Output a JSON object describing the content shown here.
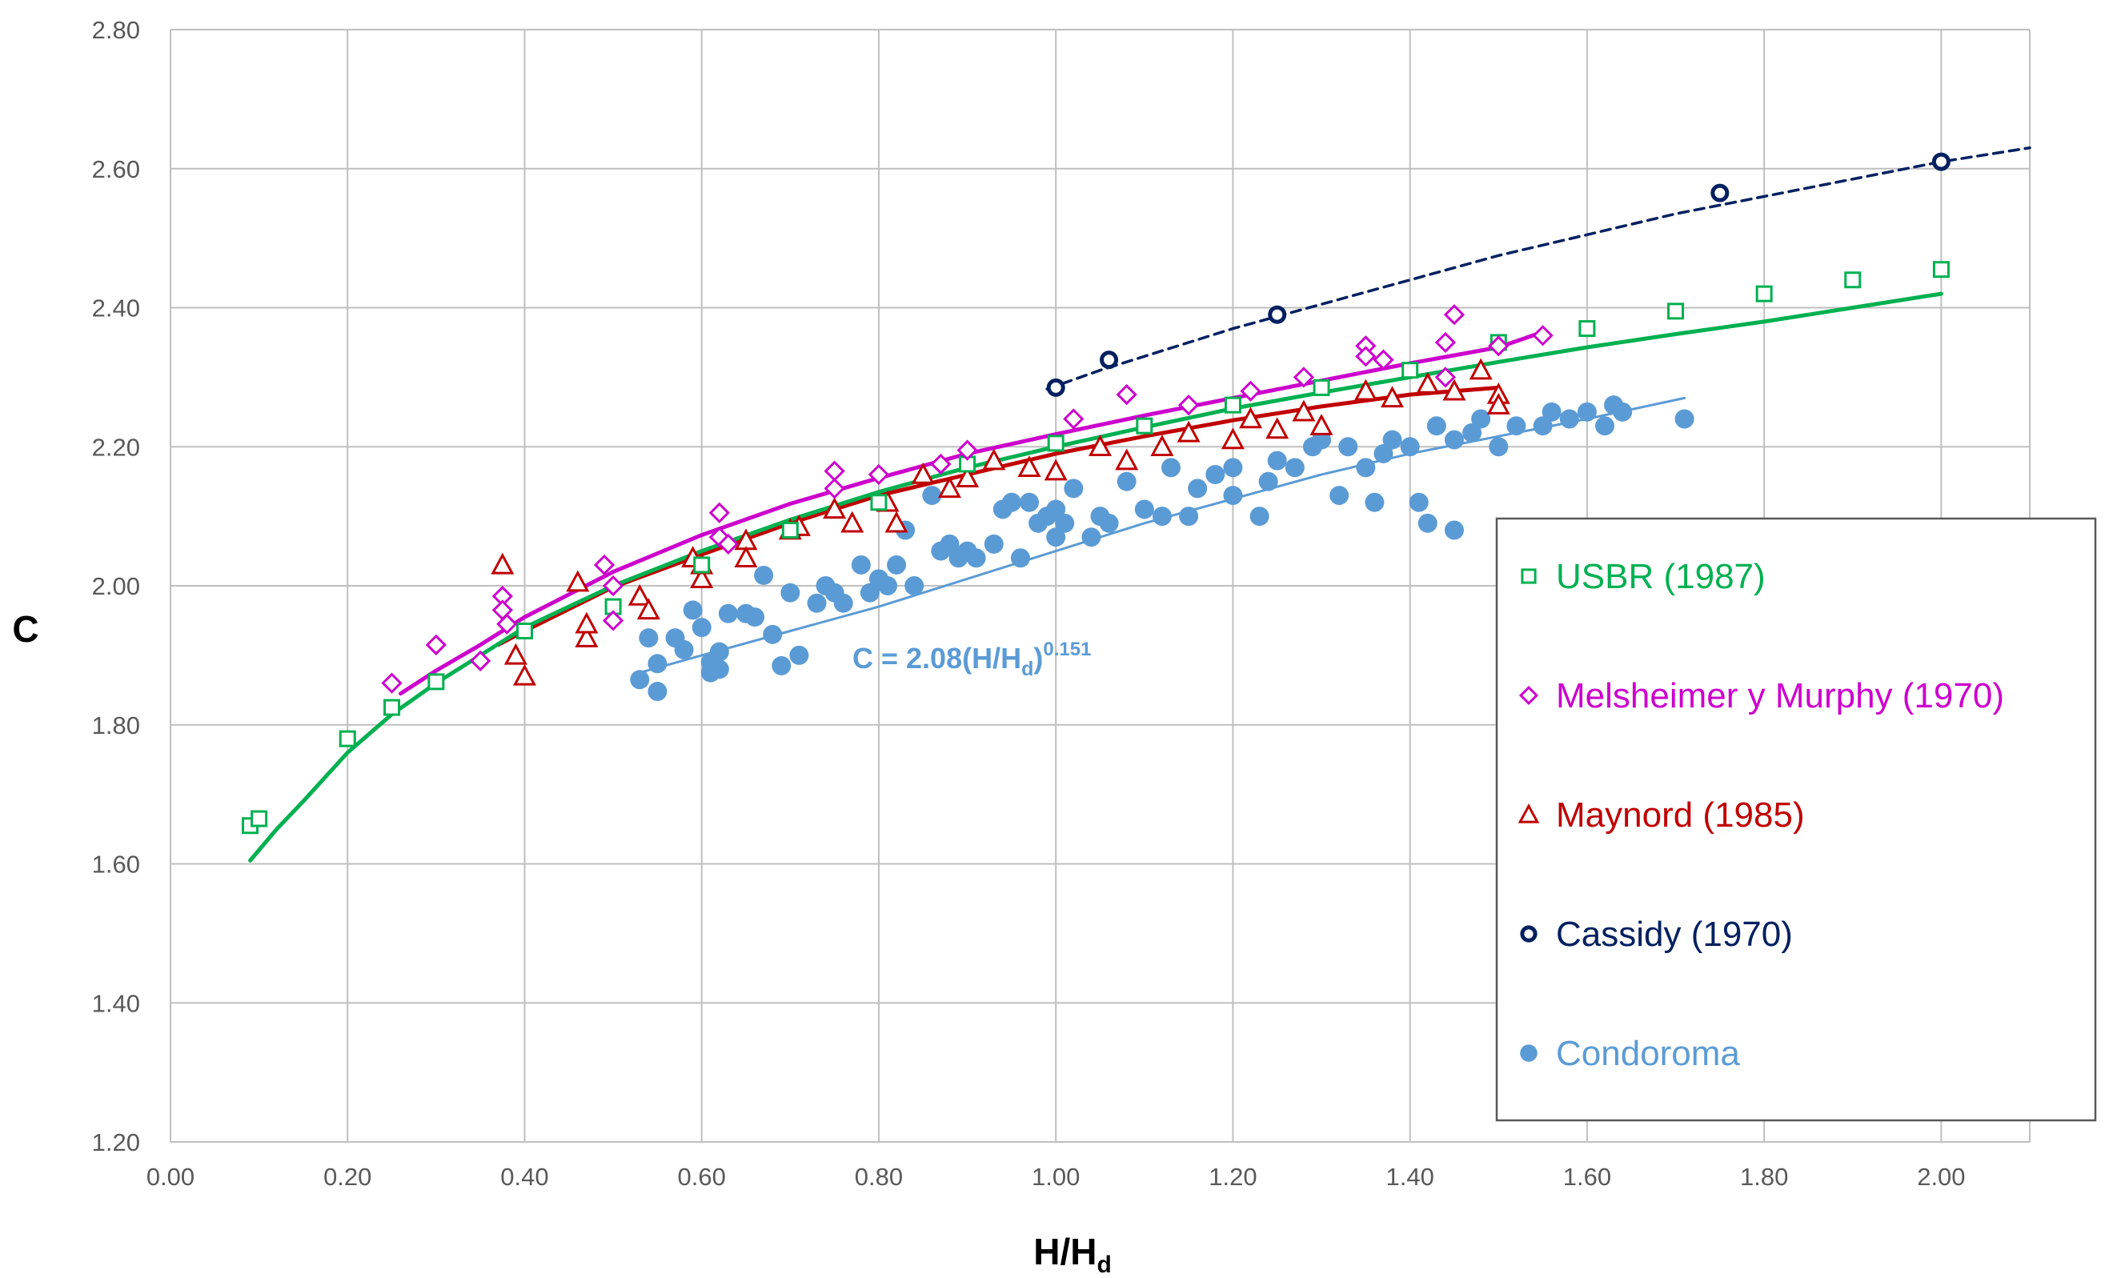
{
  "chart_data": {
    "type": "scatter",
    "title": "",
    "xlabel": "H/H",
    "xlabel_sub": "d",
    "ylabel": "C",
    "xlim": [
      0.0,
      2.1
    ],
    "ylim": [
      1.2,
      2.8
    ],
    "x_ticks": [
      "0.00",
      "0.20",
      "0.40",
      "0.60",
      "0.80",
      "1.00",
      "1.20",
      "1.40",
      "1.60",
      "1.80",
      "2.00"
    ],
    "y_ticks": [
      "1.20",
      "1.40",
      "1.60",
      "1.80",
      "2.00",
      "2.20",
      "2.40",
      "2.60",
      "2.80"
    ],
    "grid": true,
    "legend_position": "right",
    "annotation": {
      "prefix": "C = 2.08(H/H",
      "sub": "d",
      "close": ")",
      "sup": "0.151",
      "x": 0.78,
      "y": 1.885
    },
    "series": [
      {
        "name": "USBR (1987)",
        "color": "#00B050",
        "marker": "square",
        "points": [
          [
            0.09,
            1.655
          ],
          [
            0.1,
            1.665
          ],
          [
            0.2,
            1.78
          ],
          [
            0.25,
            1.825
          ],
          [
            0.3,
            1.862
          ],
          [
            0.4,
            1.935
          ],
          [
            0.5,
            1.97
          ],
          [
            0.6,
            2.03
          ],
          [
            0.7,
            2.08
          ],
          [
            0.8,
            2.12
          ],
          [
            0.9,
            2.175
          ],
          [
            1.0,
            2.205
          ],
          [
            1.1,
            2.23
          ],
          [
            1.2,
            2.26
          ],
          [
            1.3,
            2.285
          ],
          [
            1.4,
            2.31
          ],
          [
            1.5,
            2.35
          ],
          [
            1.6,
            2.37
          ],
          [
            1.7,
            2.395
          ],
          [
            1.8,
            2.42
          ],
          [
            1.9,
            2.44
          ],
          [
            2.0,
            2.455
          ]
        ],
        "fit": {
          "type": "line",
          "x": [
            0.09,
            0.12,
            0.15,
            0.2,
            0.25,
            0.3,
            0.4,
            0.5,
            0.6,
            0.7,
            0.8,
            0.9,
            1.0,
            1.1,
            1.2,
            1.3,
            1.4,
            1.5,
            1.6,
            1.7,
            1.8,
            1.9,
            2.0
          ],
          "y": [
            1.605,
            1.65,
            1.69,
            1.76,
            1.815,
            1.86,
            1.94,
            2.0,
            2.05,
            2.095,
            2.135,
            2.17,
            2.2,
            2.228,
            2.255,
            2.278,
            2.3,
            2.322,
            2.343,
            2.362,
            2.38,
            2.4,
            2.42
          ],
          "width": 5,
          "dash": ""
        }
      },
      {
        "name": "Melsheimer y Murphy (1970)",
        "color": "#CC00CC",
        "marker": "diamond",
        "points": [
          [
            0.25,
            1.86
          ],
          [
            0.3,
            1.915
          ],
          [
            0.35,
            1.892
          ],
          [
            0.375,
            1.985
          ],
          [
            0.375,
            1.965
          ],
          [
            0.38,
            1.945
          ],
          [
            0.49,
            2.03
          ],
          [
            0.5,
            2.0
          ],
          [
            0.5,
            1.95
          ],
          [
            0.62,
            2.105
          ],
          [
            0.62,
            2.07
          ],
          [
            0.63,
            2.06
          ],
          [
            0.75,
            2.165
          ],
          [
            0.75,
            2.14
          ],
          [
            0.8,
            2.16
          ],
          [
            0.87,
            2.175
          ],
          [
            0.9,
            2.195
          ],
          [
            1.02,
            2.24
          ],
          [
            1.08,
            2.275
          ],
          [
            1.15,
            2.26
          ],
          [
            1.22,
            2.28
          ],
          [
            1.28,
            2.3
          ],
          [
            1.35,
            2.345
          ],
          [
            1.35,
            2.33
          ],
          [
            1.37,
            2.325
          ],
          [
            1.44,
            2.35
          ],
          [
            1.45,
            2.39
          ],
          [
            1.44,
            2.3
          ],
          [
            1.5,
            2.345
          ],
          [
            1.55,
            2.36
          ]
        ],
        "fit": {
          "type": "line",
          "x": [
            0.26,
            0.3,
            0.35,
            0.4,
            0.5,
            0.6,
            0.7,
            0.8,
            0.9,
            1.0,
            1.1,
            1.2,
            1.3,
            1.4,
            1.5,
            1.55
          ],
          "y": [
            1.845,
            1.878,
            1.915,
            1.955,
            2.02,
            2.073,
            2.118,
            2.155,
            2.19,
            2.218,
            2.245,
            2.27,
            2.295,
            2.32,
            2.343,
            2.365
          ],
          "width": 5,
          "dash": ""
        }
      },
      {
        "name": "Maynord (1985)",
        "color": "#C00000",
        "marker": "triangle",
        "points": [
          [
            0.375,
            2.03
          ],
          [
            0.39,
            1.9
          ],
          [
            0.4,
            1.87
          ],
          [
            0.46,
            2.005
          ],
          [
            0.47,
            1.925
          ],
          [
            0.47,
            1.945
          ],
          [
            0.53,
            1.985
          ],
          [
            0.54,
            1.965
          ],
          [
            0.59,
            2.04
          ],
          [
            0.6,
            2.01
          ],
          [
            0.6,
            2.03
          ],
          [
            0.65,
            2.065
          ],
          [
            0.65,
            2.04
          ],
          [
            0.7,
            2.08
          ],
          [
            0.71,
            2.085
          ],
          [
            0.75,
            2.11
          ],
          [
            0.77,
            2.09
          ],
          [
            0.81,
            2.12
          ],
          [
            0.82,
            2.09
          ],
          [
            0.85,
            2.16
          ],
          [
            0.88,
            2.14
          ],
          [
            0.9,
            2.155
          ],
          [
            0.93,
            2.18
          ],
          [
            0.97,
            2.17
          ],
          [
            1.0,
            2.165
          ],
          [
            1.05,
            2.2
          ],
          [
            1.08,
            2.18
          ],
          [
            1.12,
            2.2
          ],
          [
            1.15,
            2.22
          ],
          [
            1.2,
            2.21
          ],
          [
            1.22,
            2.24
          ],
          [
            1.25,
            2.225
          ],
          [
            1.28,
            2.25
          ],
          [
            1.3,
            2.23
          ],
          [
            1.35,
            2.28
          ],
          [
            1.38,
            2.27
          ],
          [
            1.42,
            2.29
          ],
          [
            1.45,
            2.28
          ],
          [
            1.48,
            2.31
          ],
          [
            1.5,
            2.275
          ],
          [
            1.5,
            2.26
          ]
        ],
        "fit": {
          "type": "line",
          "x": [
            0.37,
            0.4,
            0.5,
            0.6,
            0.7,
            0.8,
            0.9,
            1.0,
            1.1,
            1.2,
            1.3,
            1.4,
            1.5
          ],
          "y": [
            1.915,
            1.935,
            1.998,
            2.045,
            2.09,
            2.13,
            2.16,
            2.19,
            2.215,
            2.238,
            2.258,
            2.275,
            2.285
          ],
          "width": 5,
          "dash": ""
        }
      },
      {
        "name": "Cassidy (1970)",
        "color": "#002060",
        "marker": "circle-open",
        "points": [
          [
            1.0,
            2.285
          ],
          [
            1.06,
            2.325
          ],
          [
            1.25,
            2.39
          ],
          [
            1.75,
            2.565
          ],
          [
            2.0,
            2.61
          ]
        ],
        "fit": {
          "type": "line",
          "x": [
            0.99,
            1.05,
            1.1,
            1.2,
            1.3,
            1.4,
            1.5,
            1.6,
            1.7,
            1.8,
            1.9,
            2.0,
            2.1
          ],
          "y": [
            2.283,
            2.31,
            2.33,
            2.37,
            2.405,
            2.44,
            2.475,
            2.505,
            2.535,
            2.56,
            2.585,
            2.61,
            2.63
          ],
          "width": 3.5,
          "dash": "12,8"
        }
      },
      {
        "name": "Condoroma",
        "color": "#5B9BD5",
        "marker": "circle-filled",
        "points": [
          [
            0.53,
            1.865
          ],
          [
            0.54,
            1.925
          ],
          [
            0.55,
            1.848
          ],
          [
            0.55,
            1.888
          ],
          [
            0.57,
            1.925
          ],
          [
            0.58,
            1.908
          ],
          [
            0.59,
            1.965
          ],
          [
            0.6,
            1.94
          ],
          [
            0.61,
            1.875
          ],
          [
            0.61,
            1.89
          ],
          [
            0.62,
            1.905
          ],
          [
            0.62,
            1.88
          ],
          [
            0.63,
            1.96
          ],
          [
            0.65,
            1.96
          ],
          [
            0.66,
            1.955
          ],
          [
            0.67,
            2.015
          ],
          [
            0.68,
            1.93
          ],
          [
            0.69,
            1.885
          ],
          [
            0.7,
            1.99
          ],
          [
            0.71,
            1.9
          ],
          [
            0.73,
            1.975
          ],
          [
            0.74,
            2.0
          ],
          [
            0.75,
            1.99
          ],
          [
            0.76,
            1.975
          ],
          [
            0.78,
            2.03
          ],
          [
            0.79,
            1.99
          ],
          [
            0.8,
            2.01
          ],
          [
            0.81,
            2.0
          ],
          [
            0.82,
            2.03
          ],
          [
            0.83,
            2.08
          ],
          [
            0.84,
            2.0
          ],
          [
            0.86,
            2.13
          ],
          [
            0.87,
            2.05
          ],
          [
            0.88,
            2.06
          ],
          [
            0.89,
            2.04
          ],
          [
            0.9,
            2.05
          ],
          [
            0.91,
            2.04
          ],
          [
            0.93,
            2.06
          ],
          [
            0.94,
            2.11
          ],
          [
            0.95,
            2.12
          ],
          [
            0.96,
            2.04
          ],
          [
            0.97,
            2.12
          ],
          [
            0.98,
            2.09
          ],
          [
            0.99,
            2.1
          ],
          [
            1.0,
            2.11
          ],
          [
            1.0,
            2.07
          ],
          [
            1.01,
            2.09
          ],
          [
            1.02,
            2.14
          ],
          [
            1.04,
            2.07
          ],
          [
            1.05,
            2.1
          ],
          [
            1.06,
            2.09
          ],
          [
            1.08,
            2.15
          ],
          [
            1.1,
            2.11
          ],
          [
            1.12,
            2.1
          ],
          [
            1.13,
            2.17
          ],
          [
            1.15,
            2.1
          ],
          [
            1.16,
            2.14
          ],
          [
            1.18,
            2.16
          ],
          [
            1.2,
            2.13
          ],
          [
            1.2,
            2.17
          ],
          [
            1.23,
            2.1
          ],
          [
            1.24,
            2.15
          ],
          [
            1.25,
            2.18
          ],
          [
            1.27,
            2.17
          ],
          [
            1.29,
            2.2
          ],
          [
            1.3,
            2.21
          ],
          [
            1.32,
            2.13
          ],
          [
            1.33,
            2.2
          ],
          [
            1.35,
            2.17
          ],
          [
            1.36,
            2.12
          ],
          [
            1.37,
            2.19
          ],
          [
            1.38,
            2.21
          ],
          [
            1.4,
            2.2
          ],
          [
            1.41,
            2.12
          ],
          [
            1.42,
            2.09
          ],
          [
            1.43,
            2.23
          ],
          [
            1.45,
            2.08
          ],
          [
            1.45,
            2.21
          ],
          [
            1.47,
            2.22
          ],
          [
            1.48,
            2.24
          ],
          [
            1.5,
            2.2
          ],
          [
            1.52,
            2.23
          ],
          [
            1.55,
            2.23
          ],
          [
            1.56,
            2.25
          ],
          [
            1.58,
            2.24
          ],
          [
            1.6,
            2.25
          ],
          [
            1.62,
            2.23
          ],
          [
            1.63,
            2.26
          ],
          [
            1.64,
            2.25
          ],
          [
            1.71,
            2.24
          ]
        ],
        "fit": {
          "type": "line",
          "x": [
            0.53,
            0.6,
            0.7,
            0.8,
            0.9,
            1.0,
            1.1,
            1.2,
            1.3,
            1.4,
            1.5,
            1.6,
            1.71
          ],
          "y": [
            1.875,
            1.9,
            1.935,
            1.97,
            2.01,
            2.05,
            2.09,
            2.125,
            2.16,
            2.19,
            2.215,
            2.24,
            2.27
          ],
          "width": 3,
          "dash": ""
        }
      }
    ]
  }
}
